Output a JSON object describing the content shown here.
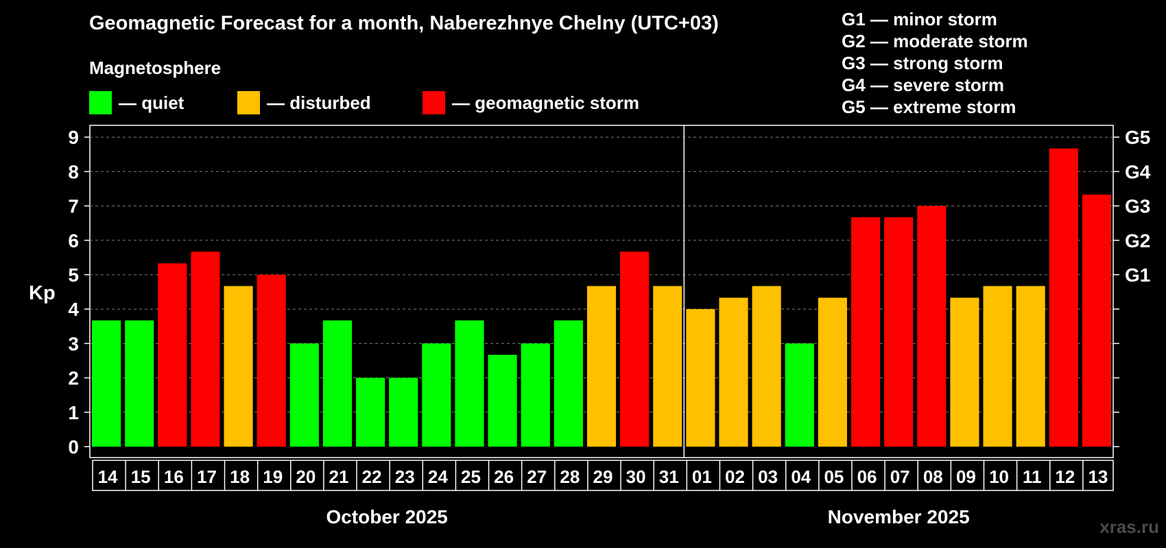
{
  "chart_data": {
    "type": "bar",
    "title": "Geomagnetic Forecast for a month, Naberezhnye Chelny (UTC+03)",
    "ylabel": "Kp",
    "ylim": [
      0,
      9
    ],
    "yticks": [
      "0",
      "1",
      "2",
      "3",
      "4",
      "5",
      "6",
      "7",
      "8",
      "9"
    ],
    "right_ticks": [
      {
        "kp": 5,
        "label": "G1"
      },
      {
        "kp": 6,
        "label": "G2"
      },
      {
        "kp": 7,
        "label": "G3"
      },
      {
        "kp": 8,
        "label": "G4"
      },
      {
        "kp": 9,
        "label": "G5"
      }
    ],
    "categories": [
      "14",
      "15",
      "16",
      "17",
      "18",
      "19",
      "20",
      "21",
      "22",
      "23",
      "24",
      "25",
      "26",
      "27",
      "28",
      "29",
      "30",
      "31",
      "01",
      "02",
      "03",
      "04",
      "05",
      "06",
      "07",
      "08",
      "09",
      "10",
      "11",
      "12",
      "13"
    ],
    "values": [
      3.67,
      3.67,
      5.33,
      5.67,
      4.67,
      5.0,
      3.0,
      3.67,
      2.0,
      2.0,
      3.0,
      3.67,
      2.67,
      3.0,
      3.67,
      4.67,
      5.67,
      4.67,
      4.0,
      4.33,
      4.67,
      3.0,
      4.33,
      6.67,
      6.67,
      7.0,
      4.33,
      4.67,
      4.67,
      8.67,
      7.33
    ],
    "levels": [
      "quiet",
      "quiet",
      "storm",
      "storm",
      "disturbed",
      "storm",
      "quiet",
      "quiet",
      "quiet",
      "quiet",
      "quiet",
      "quiet",
      "quiet",
      "quiet",
      "quiet",
      "disturbed",
      "storm",
      "disturbed",
      "disturbed",
      "disturbed",
      "disturbed",
      "quiet",
      "disturbed",
      "storm",
      "storm",
      "storm",
      "disturbed",
      "disturbed",
      "disturbed",
      "storm",
      "storm"
    ],
    "months": [
      {
        "label": "October 2025",
        "start": 0,
        "end": 17
      },
      {
        "label": "November 2025",
        "start": 18,
        "end": 30
      }
    ],
    "grid": true,
    "colors": {
      "quiet": "#00ff00",
      "disturbed": "#ffc000",
      "storm": "#ff0000",
      "background": "#000000",
      "grid": "#808080",
      "axis": "#ffffff"
    }
  },
  "legend": {
    "heading": "Magnetosphere",
    "items": [
      {
        "key": "quiet",
        "label": "— quiet"
      },
      {
        "key": "disturbed",
        "label": "— disturbed"
      },
      {
        "key": "storm",
        "label": "— geomagnetic storm"
      }
    ]
  },
  "storm_scale": [
    "G1 — minor storm",
    "G2 — moderate storm",
    "G3 — strong storm",
    "G4 — severe storm",
    "G5 — extreme storm"
  ],
  "watermark": "xras.ru"
}
